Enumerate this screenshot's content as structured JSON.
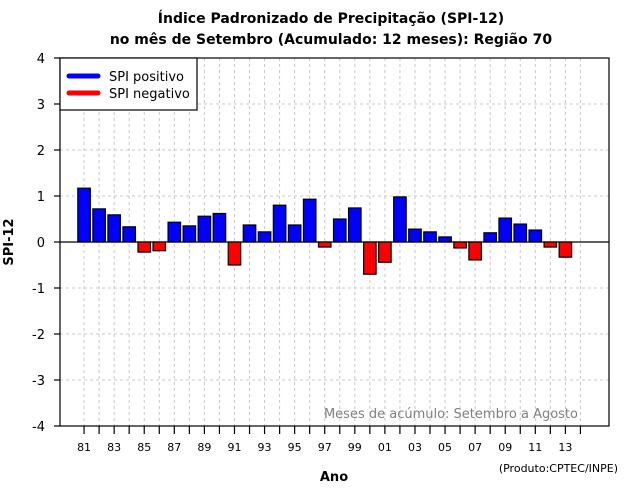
{
  "chart_data": {
    "type": "bar",
    "title": "Índice Padronizado de Precipitação (SPI-12)",
    "subtitle": "no mês de Setembro (Acumulado: 12 meses): Região 70",
    "xlabel": "Ano",
    "ylabel": "SPI-12",
    "ylim": [
      -4,
      4
    ],
    "xlim": [
      1979.4,
      2015.9
    ],
    "yticks": [
      -4,
      -3,
      -2,
      -1,
      0,
      1,
      2,
      3,
      4
    ],
    "ytick_labels": [
      "-4",
      "-3",
      "-2",
      "-1",
      "0",
      "1",
      "2",
      "3",
      "4"
    ],
    "xticks": [
      1981,
      1982,
      1983,
      1984,
      1985,
      1986,
      1987,
      1988,
      1989,
      1990,
      1991,
      1992,
      1993,
      1994,
      1995,
      1996,
      1997,
      1998,
      1999,
      2000,
      2001,
      2002,
      2003,
      2004,
      2005,
      2006,
      2007,
      2008,
      2009,
      2010,
      2011,
      2012,
      2013,
      2014
    ],
    "xtick_labels": [
      {
        "year": 1981,
        "label": "81"
      },
      {
        "year": 1983,
        "label": "83"
      },
      {
        "year": 1985,
        "label": "85"
      },
      {
        "year": 1987,
        "label": "87"
      },
      {
        "year": 1989,
        "label": "89"
      },
      {
        "year": 1991,
        "label": "91"
      },
      {
        "year": 1993,
        "label": "93"
      },
      {
        "year": 1995,
        "label": "95"
      },
      {
        "year": 1997,
        "label": "97"
      },
      {
        "year": 1999,
        "label": "99"
      },
      {
        "year": 2001,
        "label": "01"
      },
      {
        "year": 2003,
        "label": "03"
      },
      {
        "year": 2005,
        "label": "05"
      },
      {
        "year": 2007,
        "label": "07"
      },
      {
        "year": 2009,
        "label": "09"
      },
      {
        "year": 2011,
        "label": "11"
      },
      {
        "year": 2013,
        "label": "13"
      }
    ],
    "categories": [
      1981,
      1982,
      1983,
      1984,
      1985,
      1986,
      1987,
      1988,
      1989,
      1990,
      1991,
      1992,
      1993,
      1994,
      1995,
      1996,
      1997,
      1998,
      1999,
      2000,
      2001,
      2002,
      2003,
      2004,
      2005,
      2006,
      2007,
      2008,
      2009,
      2010,
      2011,
      2012,
      2013
    ],
    "values": [
      1.17,
      0.72,
      0.59,
      0.33,
      -0.22,
      -0.19,
      0.43,
      0.35,
      0.56,
      0.62,
      -0.5,
      0.37,
      0.22,
      0.8,
      0.37,
      0.93,
      -0.11,
      0.5,
      0.74,
      -0.7,
      -0.44,
      0.98,
      0.28,
      0.22,
      0.11,
      -0.13,
      -0.39,
      0.2,
      0.52,
      0.39,
      0.26,
      -0.11,
      -0.33
    ],
    "grid": true,
    "legend": {
      "position": "top-left",
      "entries": [
        {
          "label": "SPI positivo",
          "color": "#0000ff"
        },
        {
          "label": "SPI negativo",
          "color": "#ff0000"
        }
      ]
    },
    "annotation": "Meses de acúmulo: Setembro a Agosto",
    "credit": "(Produto:CPTEC/INPE)",
    "colors": {
      "positive": "#0000ff",
      "negative": "#ff0000",
      "grid": "#c8c8c8",
      "annotation": "#808080"
    }
  }
}
